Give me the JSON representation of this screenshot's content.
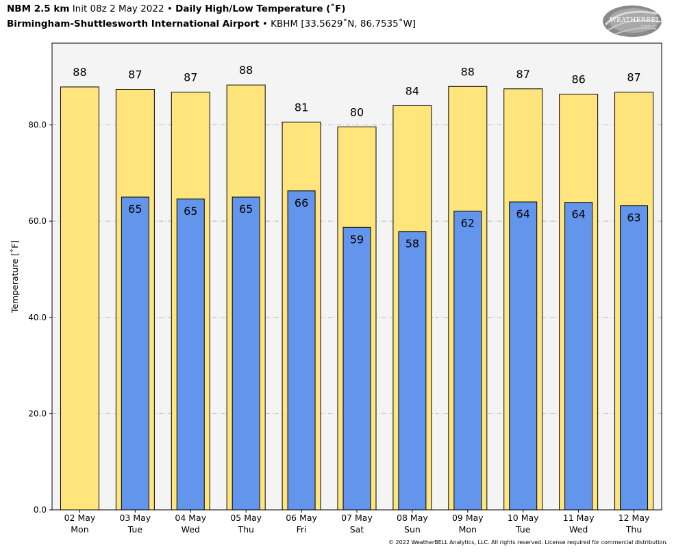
{
  "header": {
    "model": "NBM 2.5 km",
    "init": "Init 08z 2 May 2022",
    "bullet": "•",
    "product": "Daily High/Low Temperature (˚F)",
    "station": "Birmingham-Shuttlesworth International Airport",
    "station_meta": "KBHM [33.5629˚N, 86.7535˚W]"
  },
  "logo": {
    "text": "WEATHERBELL",
    "subtext": "Analytics LLC"
  },
  "footer": "© 2022 WeatherBELL Analytics, LLC. All rights reserved. License required for commercial distribution.",
  "colors": {
    "high": "#ffe57c",
    "low": "#6495ed",
    "plot_bg": "#f4f4f4",
    "grid": "#b5b5b5"
  },
  "chart_data": {
    "type": "bar",
    "title": "Daily High/Low Temperature (˚F)",
    "ylabel": "Temperature [˚F]",
    "xlabel": "",
    "ylim": [
      0,
      97
    ],
    "yticks": [
      0.0,
      20.0,
      40.0,
      60.0,
      80.0
    ],
    "ytick_labels": [
      "0.0",
      "20.0",
      "40.0",
      "60.0",
      "80.0"
    ],
    "grid": "horizontal dash-dot",
    "categories": [
      {
        "date": "02 May",
        "day": "Mon"
      },
      {
        "date": "03 May",
        "day": "Tue"
      },
      {
        "date": "04 May",
        "day": "Wed"
      },
      {
        "date": "05 May",
        "day": "Thu"
      },
      {
        "date": "06 May",
        "day": "Fri"
      },
      {
        "date": "07 May",
        "day": "Sat"
      },
      {
        "date": "08 May",
        "day": "Sun"
      },
      {
        "date": "09 May",
        "day": "Mon"
      },
      {
        "date": "10 May",
        "day": "Tue"
      },
      {
        "date": "11 May",
        "day": "Wed"
      },
      {
        "date": "12 May",
        "day": "Thu"
      }
    ],
    "series": [
      {
        "key": "high",
        "values": [
          87.9,
          87.4,
          86.8,
          88.3,
          80.6,
          79.6,
          84.0,
          88.0,
          87.5,
          86.4,
          86.8
        ],
        "labels": [
          "88",
          "87",
          "87",
          "88",
          "81",
          "80",
          "84",
          "88",
          "87",
          "86",
          "87"
        ]
      },
      {
        "key": "low",
        "values": [
          null,
          65.0,
          64.6,
          65.0,
          66.3,
          58.7,
          57.8,
          62.1,
          64.0,
          63.9,
          63.2
        ],
        "labels": [
          "",
          "65",
          "65",
          "65",
          "66",
          "59",
          "58",
          "62",
          "64",
          "64",
          "63"
        ]
      }
    ]
  }
}
